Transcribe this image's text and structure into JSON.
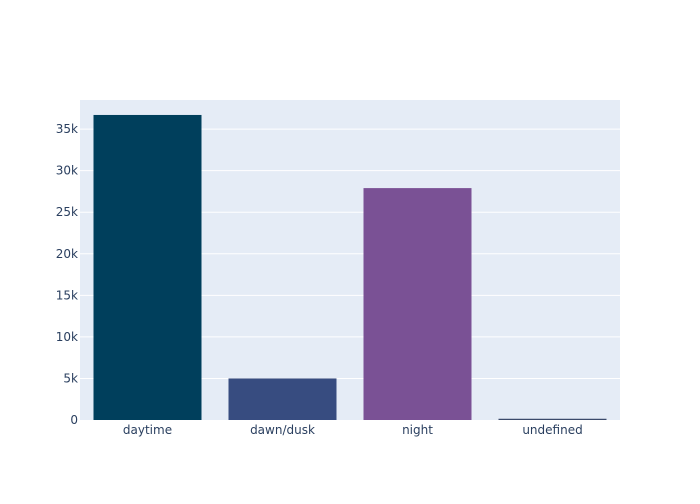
{
  "chart_data": {
    "type": "bar",
    "categories": [
      "daytime",
      "dawn/dusk",
      "night",
      "undefined"
    ],
    "values": [
      36700,
      5000,
      27900,
      150
    ],
    "colors": [
      "#003f5c",
      "#374c80",
      "#7a5195",
      "#3b4a6b"
    ],
    "ylim": [
      0,
      38500
    ],
    "yticks": [
      0,
      5000,
      10000,
      15000,
      20000,
      25000,
      30000,
      35000
    ],
    "ytick_labels": [
      "0",
      "5k",
      "10k",
      "15k",
      "20k",
      "25k",
      "30k",
      "35k"
    ],
    "grid": true,
    "plot_background": "#e5ecf6",
    "title": "",
    "xlabel": "",
    "ylabel": ""
  }
}
